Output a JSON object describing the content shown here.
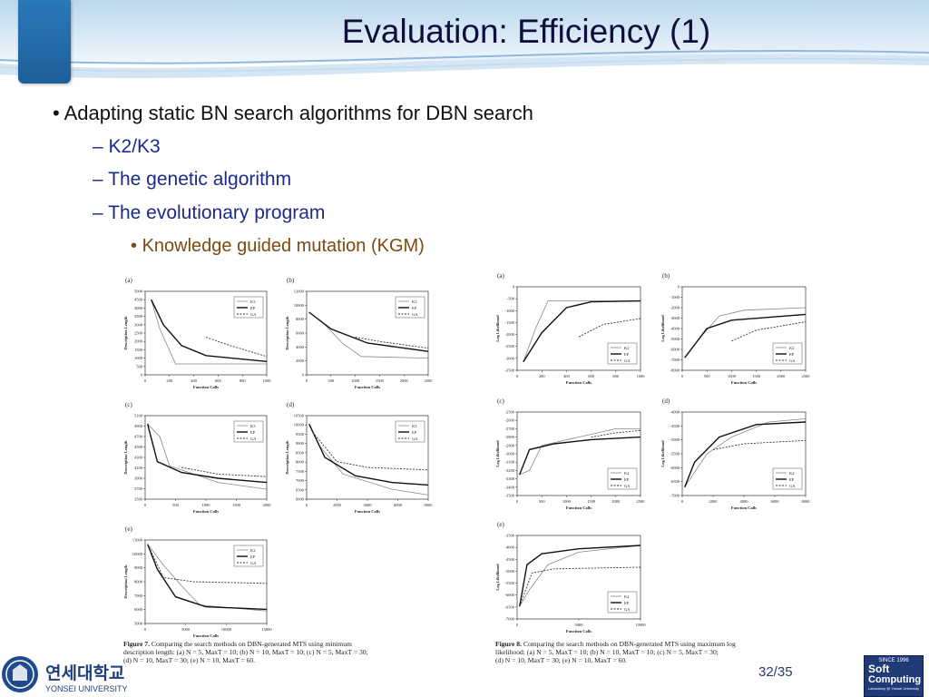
{
  "slide": {
    "title": "Evaluation: Efficiency (1)",
    "page_number": "32/35"
  },
  "bullets": {
    "level1": "Adapting static BN search algorithms for DBN search",
    "level2": [
      "K2/K3",
      "The genetic algorithm",
      "The evolutionary program"
    ],
    "level3": "Knowledge guided mutation (KGM)"
  },
  "figure7": {
    "caption_label": "Figure 7.",
    "caption_lines": [
      "Comparing the search methods on DBN-generated MTS using minimum",
      "description length: (a) N = 5, MaxT = 10; (b) N = 10, MaxT = 10; (c) N = 5, MaxT = 30;",
      "(d) N = 10, MaxT = 30; (e) N = 10, MaxT = 60."
    ],
    "ylabel": "Description Length",
    "xlabel": "Function Calls",
    "panels": [
      {
        "label": "(a)",
        "yticks": [
          "5000",
          "4500",
          "4000",
          "3500",
          "3000",
          "2500",
          "2000",
          "1500",
          "1000",
          "500",
          "0"
        ],
        "xticks": [
          "0",
          "200",
          "400",
          "600",
          "800",
          "1000"
        ],
        "legend": [
          "K3",
          "EP",
          "GA"
        ]
      },
      {
        "label": "(b)",
        "yticks": [
          "12000",
          "10000",
          "8000",
          "6000",
          "4000",
          "2000",
          "0"
        ],
        "xticks": [
          "0",
          "500",
          "1000",
          "1500",
          "2000",
          "2500"
        ],
        "legend": [
          "K3",
          "EP",
          "GA"
        ]
      },
      {
        "label": "(c)",
        "yticks": [
          "5100",
          "4900",
          "4700",
          "4500",
          "4300",
          "4100",
          "3900",
          "3700",
          "3500"
        ],
        "xticks": [
          "0",
          "500",
          "1000",
          "1500",
          "2000"
        ],
        "legend": [
          "K3",
          "EP",
          "GA"
        ]
      },
      {
        "label": "(d)",
        "yticks": [
          "10500",
          "10000",
          "9500",
          "9000",
          "8500",
          "8000",
          "7500",
          "7000",
          "6500",
          "6000"
        ],
        "xticks": [
          "0",
          "2000",
          "4000",
          "6000",
          "8000"
        ],
        "legend": [
          "K3",
          "EP",
          "GA"
        ]
      },
      {
        "label": "(e)",
        "yticks": [
          "11000",
          "10000",
          "9000",
          "8000",
          "7000",
          "6000",
          "5000"
        ],
        "xticks": [
          "0",
          "5000",
          "10000",
          "15000"
        ],
        "legend": [
          "K2",
          "EP",
          "GA"
        ]
      }
    ]
  },
  "figure8": {
    "caption_label": "Figure 8.",
    "caption_lines": [
      "Comparing the search methods on DBN-generated MTS using maximum log",
      "likelihood: (a) N = 5, MaxT = 10; (b) N = 10, MaxT = 10; (c) N = 5, MaxT = 30;",
      "(d) N = 10, MaxT = 30; (e) N = 10, MaxT = 60."
    ],
    "ylabel": "Log Likelihood",
    "xlabel": "Function Calls",
    "panels": [
      {
        "label": "(a)",
        "yticks": [
          "0",
          "-500",
          "-1000",
          "-1500",
          "-2000",
          "-2500",
          "-3000",
          "-3500"
        ],
        "xticks": [
          "0",
          "200",
          "400",
          "600",
          "800",
          "1000"
        ],
        "legend": [
          "K2",
          "EP",
          "GA"
        ]
      },
      {
        "label": "(b)",
        "yticks": [
          "0",
          "-1000",
          "-2000",
          "-3000",
          "-4000",
          "-5000",
          "-6000",
          "-7000",
          "-8000"
        ],
        "xticks": [
          "0",
          "500",
          "1000",
          "1500",
          "2000",
          "2500"
        ],
        "legend": [
          "K2",
          "EP",
          "GA"
        ]
      },
      {
        "label": "(c)",
        "yticks": [
          "-2500",
          "-2600",
          "-2700",
          "-2800",
          "-2900",
          "-3000",
          "-3100",
          "-3200",
          "-3300",
          "-3400",
          "-3500"
        ],
        "xticks": [
          "0",
          "500",
          "1000",
          "1500",
          "2000",
          "2500"
        ],
        "legend": [
          "K2",
          "EP",
          "GA"
        ]
      },
      {
        "label": "(d)",
        "yticks": [
          "-4000",
          "-4500",
          "-5000",
          "-5500",
          "-6000",
          "-6500",
          "-7000"
        ],
        "xticks": [
          "0",
          "2000",
          "4000",
          "6000",
          "8000"
        ],
        "legend": [
          "K2",
          "EP",
          "GA"
        ]
      },
      {
        "label": "(e)",
        "yticks": [
          "-3500",
          "-4000",
          "-4500",
          "-5000",
          "-5500",
          "-6000",
          "-6500",
          "-7000"
        ],
        "xticks": [
          "0",
          "5000",
          "10000"
        ],
        "legend": [
          "K2",
          "EP",
          "GA"
        ]
      }
    ]
  },
  "logos": {
    "yonsei_korean": "연세대학교",
    "yonsei_english": "YONSEI UNIVERSITY",
    "sc_since": "SINCE 1996",
    "sc_line1": "Soft",
    "sc_line2": "Computing",
    "sc_line3": "Laboratory @ Yonsei University"
  },
  "colors": {
    "title": "#0f0f3c",
    "level2": "#1d2a8a",
    "level3": "#7a4a10",
    "tab_blue": "#1e5f99"
  }
}
